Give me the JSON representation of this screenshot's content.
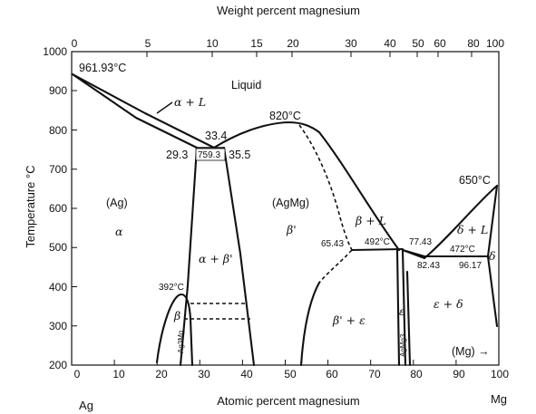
{
  "titles": {
    "top_axis": "Weight percent magnesium",
    "bottom_axis": "Atomic percent magnesium",
    "left_axis": "Temperature °C",
    "left_element": "Ag",
    "right_element": "Mg",
    "mg_arrow": "(Mg) →"
  },
  "axes": {
    "y_ticks": [
      "1000",
      "900",
      "800",
      "700",
      "600",
      "500",
      "400",
      "300",
      "200"
    ],
    "x_ticks": [
      "0",
      "10",
      "20",
      "30",
      "40",
      "50",
      "60",
      "70",
      "80",
      "90",
      "100"
    ],
    "top_ticks": [
      "0",
      "5",
      "10",
      "15",
      "20",
      "30",
      "40",
      "50",
      "60",
      "80",
      "100"
    ]
  },
  "labels": {
    "ag_melting": "961.93°C",
    "alpha_plus_liquid": "α + L",
    "liquid": "Liquid",
    "t_820": "820°C",
    "comp_33_4": "33.4",
    "comp_29_3": "29.3",
    "t_759_3": "759.3",
    "comp_35_5": "35.5",
    "t_650": "650°C",
    "ag_phase": "(Ag)",
    "alpha": "α",
    "agmg_phase": "(AgMg)",
    "beta_prime": "β'",
    "beta_plus_liquid": "β + L",
    "delta_plus_liquid": "δ + L",
    "comp_65_43": "65.43",
    "t_492": "492°C",
    "comp_77_43": "77.43",
    "t_472": "472°C",
    "comp_82_43": "82.43",
    "comp_96_17": "96.17",
    "delta": "δ",
    "alpha_plus_beta_prime": "α + β'",
    "t_392": "392°C",
    "beta": "β",
    "ag3mg": "Ag3Mg",
    "beta_prime_plus_epsilon": "β' + ε",
    "epsilon": "ε",
    "agmg3": "AgMg3",
    "epsilon_plus_delta": "ε + δ"
  }
}
